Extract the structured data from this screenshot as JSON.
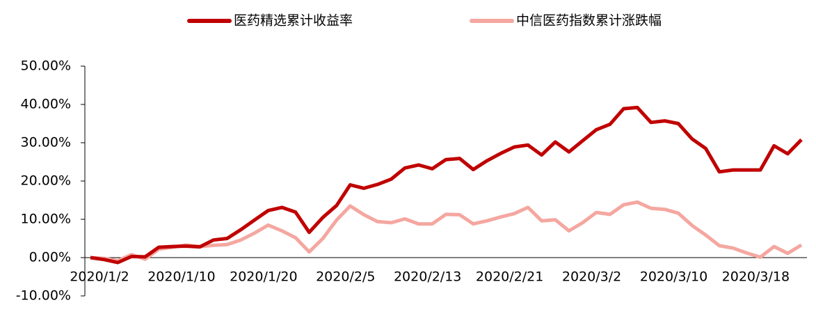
{
  "chart_data": {
    "type": "line",
    "categories": [
      "2020/1/2",
      null,
      null,
      null,
      null,
      null,
      "2020/1/10",
      null,
      null,
      null,
      null,
      null,
      "2020/1/20",
      null,
      null,
      null,
      null,
      null,
      "2020/2/5",
      null,
      null,
      null,
      null,
      null,
      "2020/2/13",
      null,
      null,
      null,
      null,
      null,
      "2020/2/21",
      null,
      null,
      null,
      null,
      null,
      "2020/3/2",
      null,
      null,
      null,
      null,
      null,
      "2020/3/10",
      null,
      null,
      null,
      null,
      null,
      "2020/3/18",
      null,
      null,
      null,
      null
    ],
    "series": [
      {
        "name": "医药精选累计收益率",
        "color": "#c00000",
        "values": [
          0,
          -0.5,
          -1.3,
          0.3,
          0.2,
          2.7,
          2.9,
          3.0,
          2.8,
          4.6,
          5.0,
          7.3,
          9.8,
          12.3,
          13.1,
          11.9,
          6.6,
          10.5,
          13.6,
          19.0,
          18.1,
          19.1,
          20.5,
          23.4,
          24.2,
          23.2,
          25.6,
          25.9,
          23.0,
          25.3,
          27.2,
          28.9,
          29.4,
          26.8,
          30.2,
          27.6,
          30.5,
          33.4,
          34.8,
          38.9,
          39.2,
          35.3,
          35.7,
          35.0,
          31.0,
          28.5,
          22.4,
          22.9,
          22.9,
          22.9,
          29.2,
          27.1,
          30.8
        ]
      },
      {
        "name": "中信医药指数累计涨跌幅",
        "color": "#f4a7a0",
        "values": [
          0,
          -0.2,
          -0.8,
          0.8,
          -0.4,
          2.2,
          2.7,
          3.3,
          2.9,
          3.2,
          3.4,
          4.6,
          6.4,
          8.5,
          7.0,
          5.2,
          1.5,
          5.0,
          9.8,
          13.5,
          11.2,
          9.4,
          9.1,
          10.1,
          8.8,
          8.8,
          11.3,
          11.2,
          8.8,
          9.6,
          10.6,
          11.5,
          13.1,
          9.6,
          9.9,
          7.0,
          9.1,
          11.8,
          11.3,
          13.8,
          14.5,
          12.9,
          12.6,
          11.6,
          8.4,
          5.9,
          3.1,
          2.5,
          1.2,
          0.1,
          2.9,
          1.1,
          3.3
        ]
      }
    ],
    "ylim": [
      -10,
      50
    ],
    "yticks": [
      {
        "value": -10,
        "label": "-10.00%"
      },
      {
        "value": 0,
        "label": "0.00%"
      },
      {
        "value": 10,
        "label": "10.00%"
      },
      {
        "value": 20,
        "label": "20.00%"
      },
      {
        "value": 30,
        "label": "30.00%"
      },
      {
        "value": 40,
        "label": "40.00%"
      },
      {
        "value": 50,
        "label": "50.00%"
      }
    ]
  }
}
